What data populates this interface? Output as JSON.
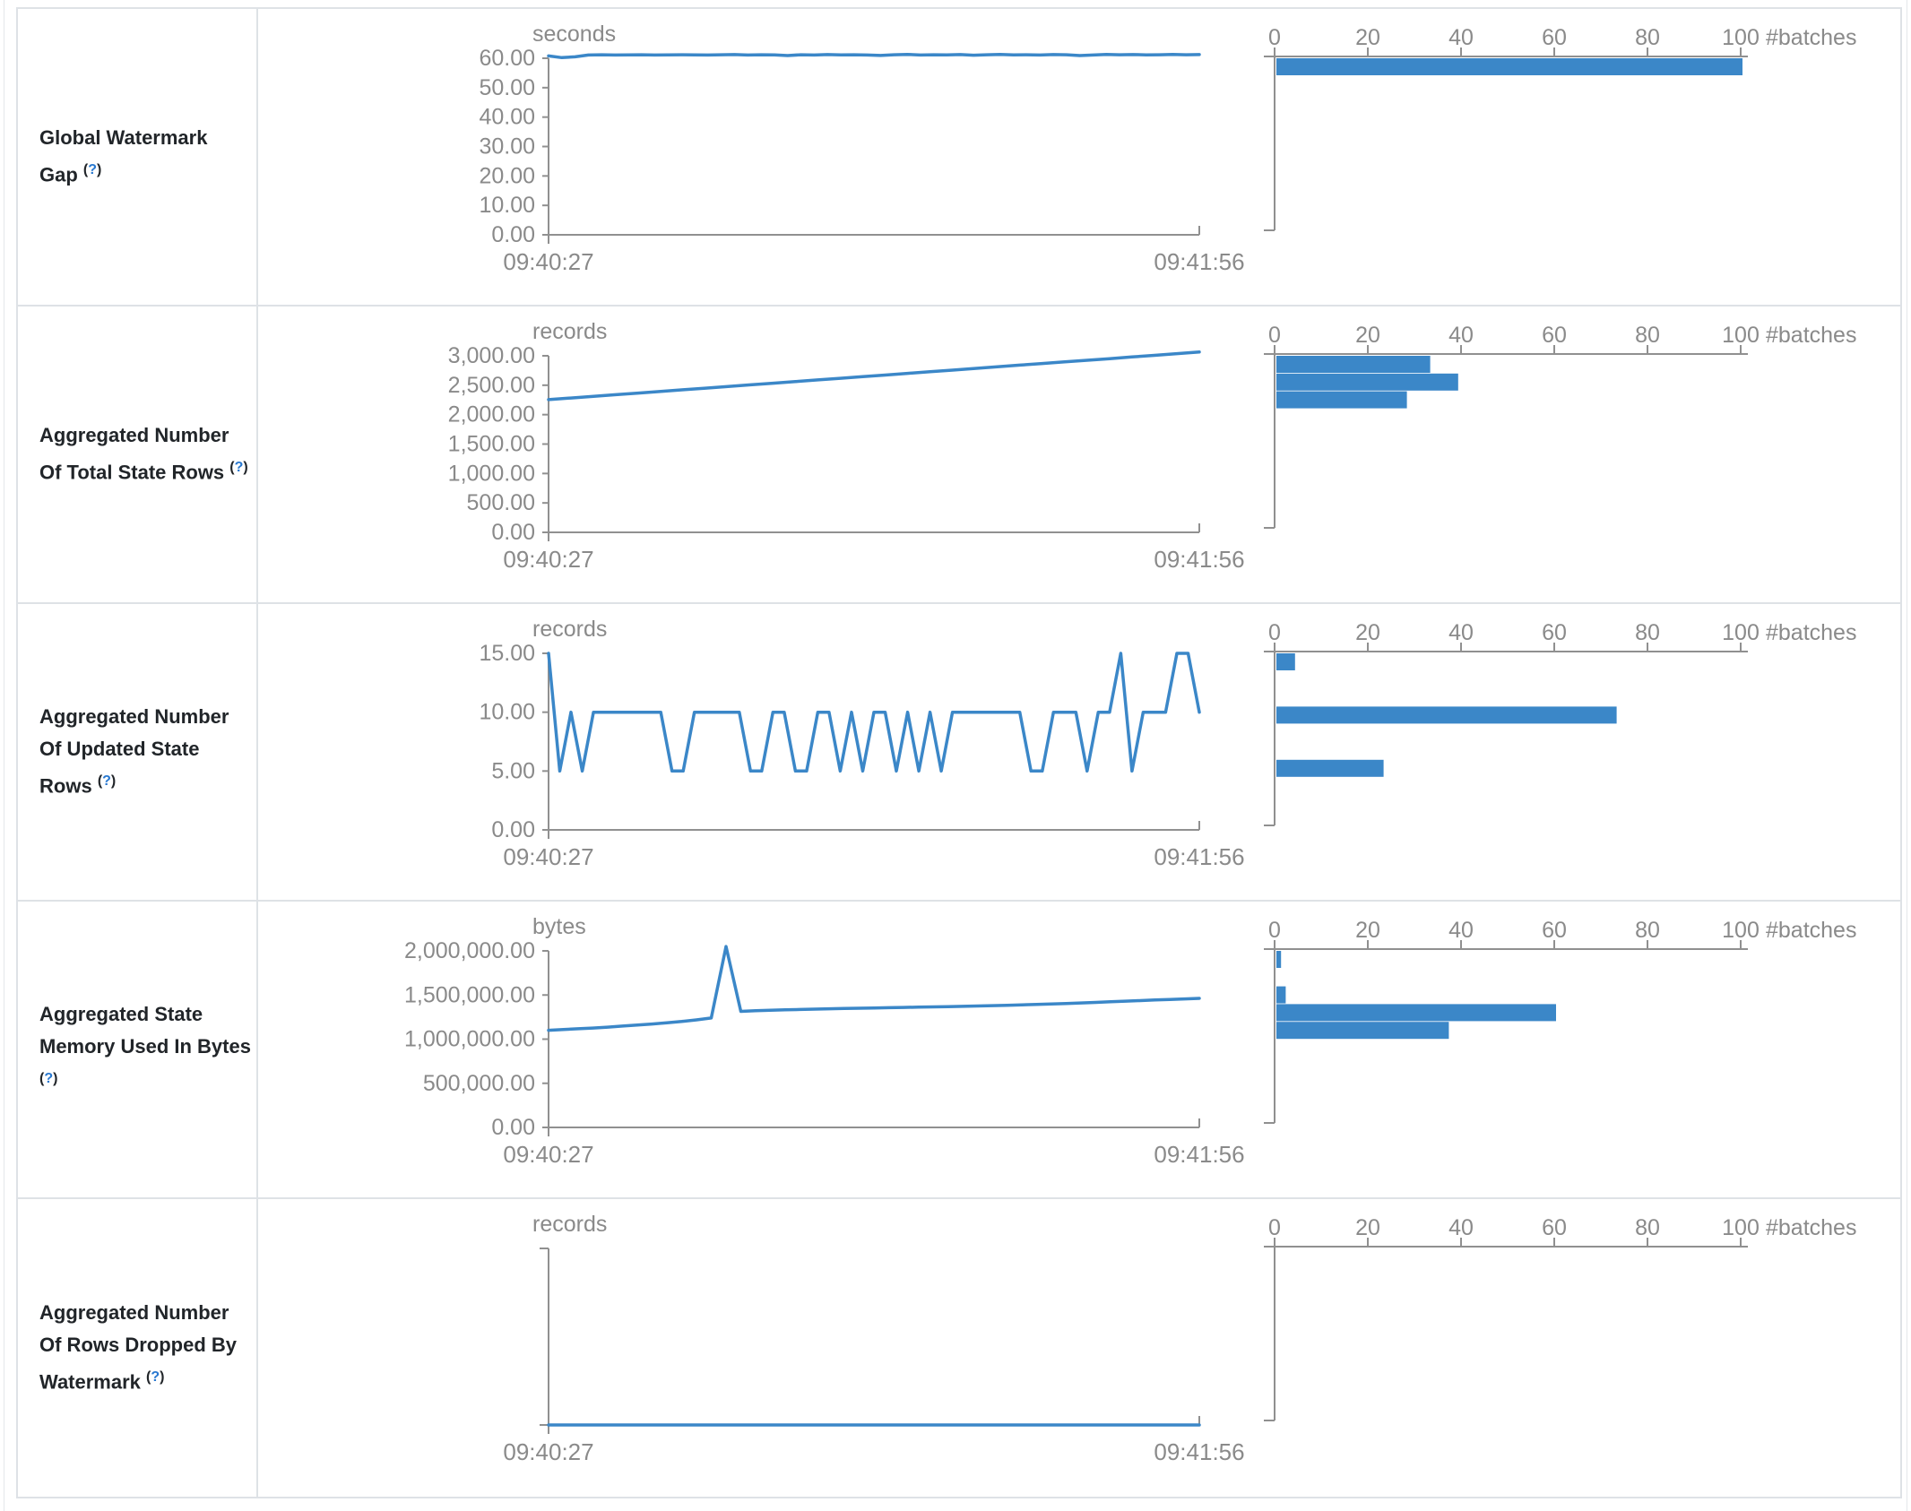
{
  "colors": {
    "accent_blue": "#3b87c8",
    "axis_gray": "#909090",
    "tick_text_gray": "#8a8a8a",
    "border_gray": "#dee2e6",
    "label_text": "#212529",
    "help_blue": "#2878d0"
  },
  "timeline_x_axis": {
    "start_label": "09:40:27",
    "end_label": "09:41:56"
  },
  "histogram_axis": {
    "tick_labels": [
      "0",
      "20",
      "40",
      "60",
      "80",
      "100"
    ],
    "label": "#batches",
    "max": 100
  },
  "rows": [
    {
      "label": "Global Watermark Gap",
      "help_label": "(?)",
      "chart_data": {
        "type": "line+histogram",
        "timeline": {
          "unit": "seconds",
          "y_max": 60,
          "y_tick_labels": [
            "60.00",
            "50.00",
            "40.00",
            "30.00",
            "20.00",
            "10.00",
            "0.00"
          ],
          "values": [
            60.8,
            60.2,
            60.5,
            61.1,
            61.2,
            61.1,
            61.15,
            61.2,
            61.1,
            61.15,
            61.2,
            61.15,
            61.1,
            61.2,
            61.25,
            61.1,
            61.2,
            61.15,
            60.9,
            61.2,
            61.1,
            61.25,
            61.15,
            61.2,
            61.1,
            60.95,
            61.2,
            61.3,
            61.1,
            61.2,
            61.15,
            61.25,
            61.05,
            61.2,
            61.3,
            61.15,
            61.2,
            61.1,
            61.25,
            61.2,
            60.9,
            61.1,
            61.3,
            61.2,
            61.25,
            61.15,
            61.2,
            61.3,
            61.2,
            61.25
          ]
        },
        "histogram": {
          "slot_count": 10,
          "bins": [
            {
              "slot": 0,
              "count": 100
            }
          ]
        }
      }
    },
    {
      "label": "Aggregated Number Of Total State Rows",
      "help_label": "(?)",
      "chart_data": {
        "type": "line+histogram",
        "timeline": {
          "unit": "records",
          "y_max": 3000,
          "y_tick_labels": [
            "3,000.00",
            "2,500.00",
            "2,000.00",
            "1,500.00",
            "1,000.00",
            "500.00",
            "0.00"
          ],
          "values": [
            2255,
            2283,
            2311,
            2339,
            2367,
            2395,
            2423,
            2450,
            2478,
            2506,
            2534,
            2562,
            2590,
            2618,
            2646,
            2673,
            2701,
            2729,
            2757,
            2785,
            2813,
            2841,
            2869,
            2896,
            2924,
            2952,
            2980,
            3008,
            3036,
            3064
          ]
        },
        "histogram": {
          "slot_count": 10,
          "bins": [
            {
              "slot": 0,
              "count": 33
            },
            {
              "slot": 1,
              "count": 39
            },
            {
              "slot": 2,
              "count": 28
            }
          ]
        }
      }
    },
    {
      "label": "Aggregated Number Of Updated State Rows",
      "help_label": "(?)",
      "chart_data": {
        "type": "line+histogram",
        "timeline": {
          "unit": "records",
          "y_max": 15,
          "y_tick_labels": [
            "15.00",
            "10.00",
            "5.00",
            "0.00"
          ],
          "values": [
            15,
            5,
            10,
            5,
            10,
            10,
            10,
            10,
            10,
            10,
            10,
            5,
            5,
            10,
            10,
            10,
            10,
            10,
            5,
            5,
            10,
            10,
            5,
            5,
            10,
            10,
            5,
            10,
            5,
            10,
            10,
            5,
            10,
            5,
            10,
            5,
            10,
            10,
            10,
            10,
            10,
            10,
            10,
            5,
            5,
            10,
            10,
            10,
            5,
            10,
            10,
            15,
            5,
            10,
            10,
            10,
            15,
            15,
            10
          ]
        },
        "histogram": {
          "slot_count": 10,
          "bins": [
            {
              "slot": 0,
              "count": 4
            },
            {
              "slot": 3,
              "count": 73
            },
            {
              "slot": 6,
              "count": 23
            }
          ]
        }
      }
    },
    {
      "label": "Aggregated State Memory Used In Bytes",
      "help_label": "(?)",
      "chart_data": {
        "type": "line+histogram",
        "timeline": {
          "unit": "bytes",
          "y_max": 2000000,
          "y_tick_labels": [
            "2,000,000.00",
            "1,500,000.00",
            "1,000,000.00",
            "500,000.00",
            "0.00"
          ],
          "values": [
            1100000,
            1110000,
            1118000,
            1126000,
            1136000,
            1148000,
            1160000,
            1172000,
            1186000,
            1200000,
            1218000,
            1240000,
            2050000,
            1315000,
            1322000,
            1328000,
            1332000,
            1336000,
            1340000,
            1344000,
            1347000,
            1350000,
            1353000,
            1356000,
            1359000,
            1362000,
            1365000,
            1368000,
            1372000,
            1376000,
            1380000,
            1384000,
            1389000,
            1394000,
            1399000,
            1404000,
            1410000,
            1416000,
            1423000,
            1430000,
            1437000,
            1444000,
            1450000,
            1456000,
            1462000
          ]
        },
        "histogram": {
          "slot_count": 10,
          "bins": [
            {
              "slot": 0,
              "count": 1
            },
            {
              "slot": 2,
              "count": 2
            },
            {
              "slot": 3,
              "count": 60
            },
            {
              "slot": 4,
              "count": 37
            }
          ]
        }
      }
    },
    {
      "label": "Aggregated Number Of Rows Dropped By Watermark",
      "help_label": "(?)",
      "chart_data": {
        "type": "line+histogram",
        "timeline": {
          "unit": "records",
          "y_max": 1,
          "y_tick_labels": [],
          "values": [
            0,
            0
          ]
        },
        "histogram": {
          "slot_count": 10,
          "bins": []
        }
      }
    }
  ]
}
